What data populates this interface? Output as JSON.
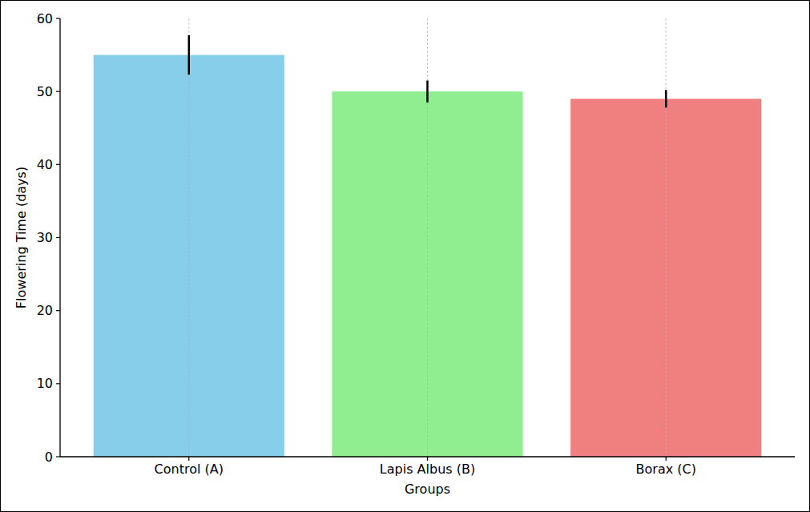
{
  "chart_data": {
    "type": "bar",
    "x_label": "Groups",
    "y_label": "Flowering Time (days)",
    "categories": [
      "Control (A)",
      "Lapis Albus (B)",
      "Borax (C)"
    ],
    "values": [
      55,
      50,
      49
    ],
    "errors": [
      2.7,
      1.5,
      1.2
    ],
    "colors": [
      "#87ceeb",
      "#90ee90",
      "#f08080"
    ],
    "ylim": [
      0,
      60
    ],
    "yticks": [
      0,
      10,
      20,
      30,
      40,
      50,
      60
    ],
    "grid": true
  }
}
